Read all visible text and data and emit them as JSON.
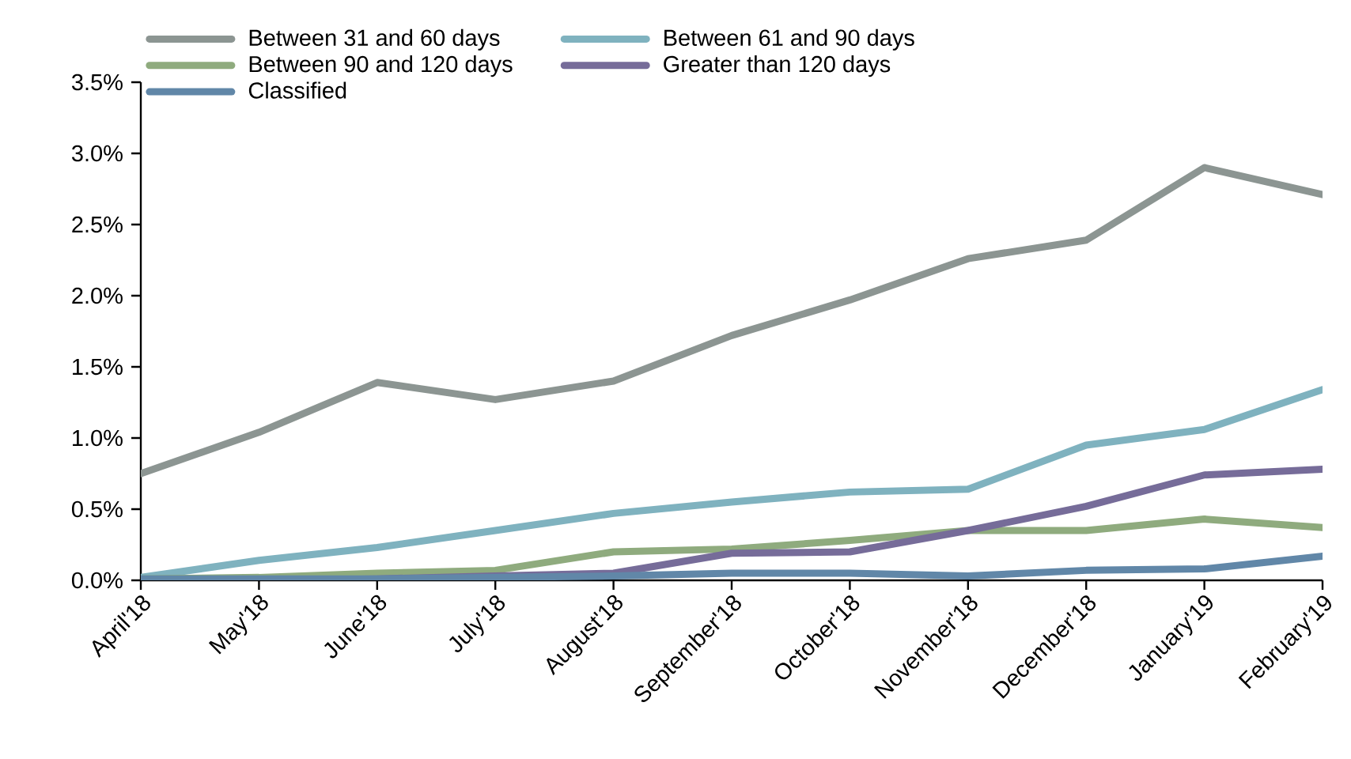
{
  "chart_data": {
    "type": "line",
    "categories": [
      "April'18",
      "May'18",
      "June'18",
      "July'18",
      "August'18",
      "September'18",
      "October'18",
      "November'18",
      "December'18",
      "January'19",
      "February'19"
    ],
    "series": [
      {
        "name": "Between 31 and 60 days",
        "color": "#8c9592",
        "values": [
          0.75,
          1.04,
          1.39,
          1.27,
          1.4,
          1.72,
          1.97,
          2.26,
          2.39,
          2.9,
          2.71
        ]
      },
      {
        "name": "Between 61 and 90 days",
        "color": "#7fb2bf",
        "values": [
          0.02,
          0.14,
          0.23,
          0.35,
          0.47,
          0.55,
          0.62,
          0.64,
          0.95,
          1.06,
          1.34
        ]
      },
      {
        "name": "Between 90 and 120 days",
        "color": "#8fab7e",
        "values": [
          0.01,
          0.02,
          0.05,
          0.07,
          0.2,
          0.22,
          0.28,
          0.35,
          0.35,
          0.43,
          0.37
        ]
      },
      {
        "name": "Greater than 120 days",
        "color": "#766c99",
        "values": [
          0.0,
          0.0,
          0.01,
          0.03,
          0.05,
          0.19,
          0.2,
          0.35,
          0.52,
          0.74,
          0.78
        ]
      },
      {
        "name": "Classified",
        "color": "#6187a8",
        "values": [
          0.01,
          0.01,
          0.01,
          0.02,
          0.03,
          0.05,
          0.05,
          0.03,
          0.07,
          0.08,
          0.17
        ]
      }
    ],
    "ylim": [
      0,
      3.5
    ],
    "yticks": [
      {
        "value": 0,
        "label": "0.0%"
      },
      {
        "value": 0.5,
        "label": "0.5%"
      },
      {
        "value": 1,
        "label": "1.0%"
      },
      {
        "value": 1.5,
        "label": "1.5%"
      },
      {
        "value": 2,
        "label": "2.0%"
      },
      {
        "value": 2.5,
        "label": "2.5%"
      },
      {
        "value": 3,
        "label": "3.0%"
      },
      {
        "value": 3.5,
        "label": "3.5%"
      }
    ],
    "legend": "top",
    "grid": false,
    "marker": "none",
    "line_style": "solid"
  }
}
